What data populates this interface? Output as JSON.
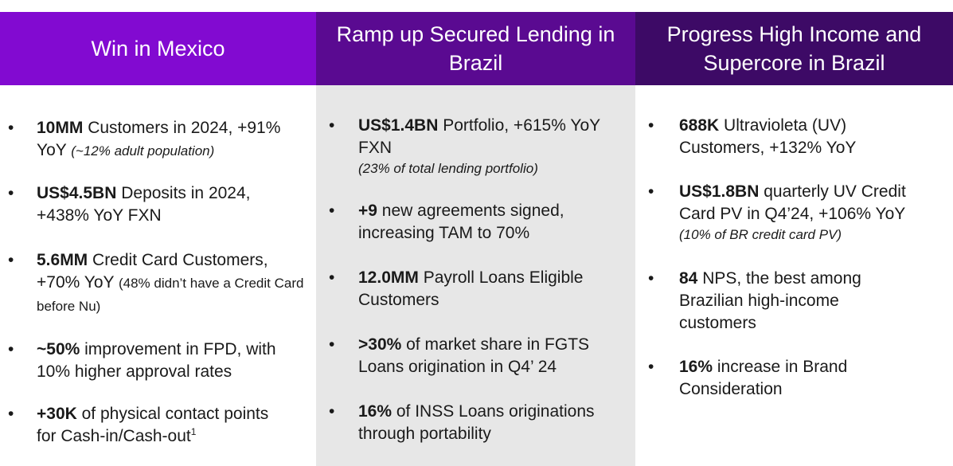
{
  "columns": [
    {
      "title": "Win in Mexico",
      "items": [
        {
          "bold": "10MM",
          "text": " Customers in 2024, +91% YoY ",
          "note": "(~12% adult population)"
        },
        {
          "bold": "US$4.5BN",
          "text": " Deposits in 2024, +438% YoY FXN"
        },
        {
          "bold": "5.6MM",
          "text": " Credit Card Customers, +70% YoY ",
          "note": "(48% didn’t have a Credit Card before Nu)"
        },
        {
          "bold": "~50%",
          "text": " improvement in FPD, with 10% higher approval rates"
        },
        {
          "bold": "+30K",
          "text": " of physical contact points for Cash-in/Cash-out",
          "sup": "1"
        }
      ]
    },
    {
      "title": "Ramp up Secured Lending in Brazil",
      "items": [
        {
          "bold": "US$1.4BN",
          "text": " Portfolio, +615% YoY FXN",
          "note": "(23% of total lending portfolio)"
        },
        {
          "bold": "+9",
          "text": " new agreements signed, increasing TAM to 70%"
        },
        {
          "bold": "12.0MM",
          "text": " Payroll Loans Eligible Customers"
        },
        {
          "bold": ">30%",
          "text": " of market share in FGTS Loans origination in Q4’ 24"
        },
        {
          "bold": "16%",
          "text": " of INSS Loans originations through portability"
        }
      ]
    },
    {
      "title": "Progress High Income and Supercore in Brazil",
      "items": [
        {
          "bold": "688K",
          "text": " Ultravioleta (UV) Customers, +132% YoY"
        },
        {
          "bold": "US$1.8BN",
          "text": " quarterly UV Credit Card PV in Q4’24, +106% YoY",
          "note": "(10% of BR credit card PV)"
        },
        {
          "bold": "84",
          "text": " NPS, the best among Brazilian high-income customers"
        },
        {
          "bold": "16%",
          "text": " increase in Brand Consideration"
        }
      ]
    }
  ],
  "bullet_char": "•",
  "colors": {
    "header_1": "#820ad1",
    "header_2": "#5a0a91",
    "header_3": "#3d0a66",
    "middle_bg": "#e7e7e7"
  }
}
